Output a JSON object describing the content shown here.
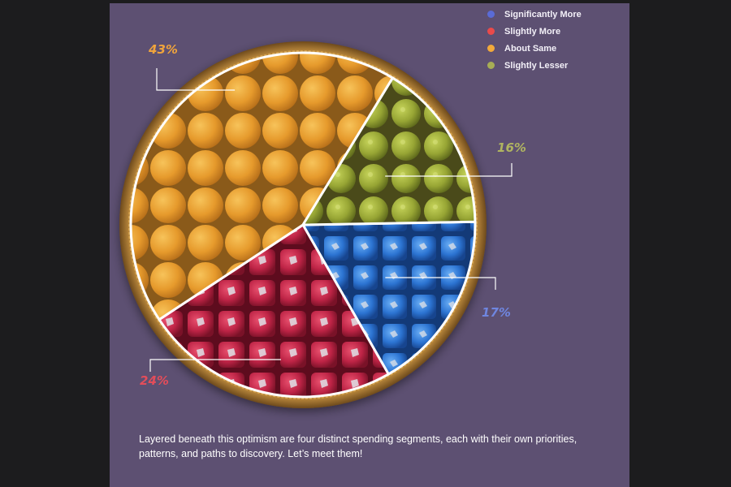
{
  "chart_data": {
    "type": "pie",
    "title": "",
    "legend_placement": "top-right",
    "categories": [
      "Significantly More",
      "Slightly More",
      "About Same",
      "Slightly Lesser"
    ],
    "values": [
      17,
      24,
      43,
      16
    ],
    "labels": [
      "17%",
      "24%",
      "43%",
      "16%"
    ],
    "colors": [
      "#6f86e0",
      "#e34d5a",
      "#f0a43c",
      "#b0b560"
    ]
  },
  "legend": {
    "items": [
      {
        "label": "Significantly More",
        "color": "#5a6bd6"
      },
      {
        "label": "Slightly More",
        "color": "#ea4a4a"
      },
      {
        "label": "About Same",
        "color": "#f2a93b"
      },
      {
        "label": "Slightly Lesser",
        "color": "#a7ad55"
      }
    ]
  },
  "caption": "Layered beneath this optimism are four distinct spending segments, each with their own priorities, patterns, and paths to discovery. Let’s meet them!",
  "palette": {
    "background": "#1c1c1e",
    "panel": "#5d5072",
    "tray_rim": "#9a6a2a",
    "sweet_orange": "#e39a2a",
    "sweet_green": "#9aa83a",
    "sweet_blue": "#2f78d4",
    "sweet_red": "#c22848"
  }
}
